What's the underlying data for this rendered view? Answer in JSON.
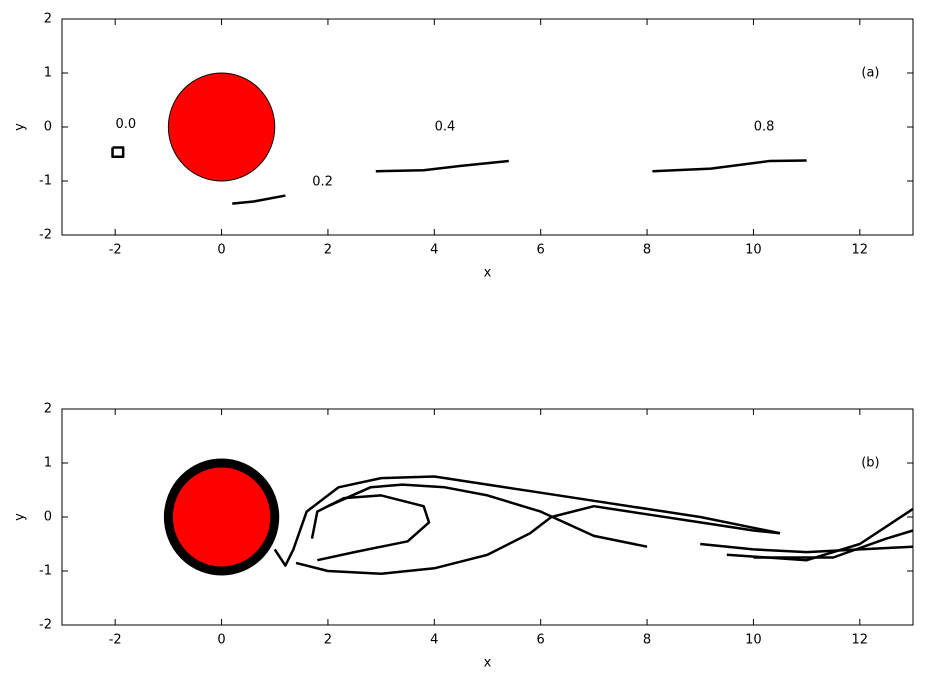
{
  "chart_data": [
    {
      "type": "line",
      "label": "(a)",
      "xlabel": "x",
      "ylabel": "y",
      "xlim": [
        -3,
        13
      ],
      "ylim": [
        -2,
        2
      ],
      "xticks": [
        -2,
        0,
        2,
        4,
        6,
        8,
        10,
        12
      ],
      "yticks": [
        -2,
        -1,
        0,
        1,
        2
      ],
      "label_x": 12.2,
      "label_y": 1,
      "cylinder": {
        "x": 0,
        "y": 0,
        "r": 1,
        "color": "#ff0000",
        "outline": false
      },
      "curve_color": "#000000",
      "curves": [
        {
          "x": [
            -2.05,
            -1.85,
            -1.85,
            -2.05,
            -2.05
          ],
          "y": [
            -0.38,
            -0.38,
            -0.55,
            -0.55,
            -0.38
          ]
        },
        {
          "x": [
            0.2,
            0.6,
            1.2
          ],
          "y": [
            -1.42,
            -1.38,
            -1.27
          ]
        },
        {
          "x": [
            2.9,
            3.8,
            4.5,
            5.4
          ],
          "y": [
            -0.82,
            -0.8,
            -0.72,
            -0.63
          ]
        },
        {
          "x": [
            8.1,
            9.2,
            10.3,
            11
          ],
          "y": [
            -0.82,
            -0.77,
            -0.63,
            -0.62
          ]
        }
      ],
      "annotations": [
        {
          "text": "0.0",
          "x": -1.8,
          "y": 0.05
        },
        {
          "text": "0.2",
          "x": 1.9,
          "y": -1.02
        },
        {
          "text": "0.4",
          "x": 4.2,
          "y": 0
        },
        {
          "text": "0.8",
          "x": 10.2,
          "y": 0
        }
      ]
    },
    {
      "type": "line",
      "label": "(b)",
      "xlabel": "x",
      "ylabel": "y",
      "xlim": [
        -3,
        13
      ],
      "ylim": [
        -2,
        2
      ],
      "xticks": [
        -2,
        0,
        2,
        4,
        6,
        8,
        10,
        12
      ],
      "yticks": [
        -2,
        -1,
        0,
        1,
        2
      ],
      "label_x": 12.2,
      "label_y": 1,
      "cylinder": {
        "x": 0,
        "y": 0,
        "r": 1,
        "color": "#ff0000",
        "outline": true
      },
      "curve_color": "#000000",
      "curves": [
        {
          "x": [
            1.0,
            1.2,
            1.35,
            1.6,
            2.2,
            3,
            4,
            5,
            6,
            7,
            8,
            9,
            10,
            10.5
          ],
          "y": [
            -0.6,
            -0.9,
            -0.6,
            0.1,
            0.55,
            0.72,
            0.75,
            0.6,
            0.45,
            0.3,
            0.15,
            0.0,
            -0.2,
            -0.3
          ]
        },
        {
          "x": [
            1.4,
            2,
            3,
            4,
            5,
            5.8,
            6.2,
            7,
            8,
            9,
            10,
            10.5
          ],
          "y": [
            -0.85,
            -1,
            -1.05,
            -0.95,
            -0.7,
            -0.3,
            0.0,
            0.2,
            0.05,
            -0.1,
            -0.25,
            -0.3
          ]
        },
        {
          "x": [
            1.7,
            1.8,
            2.3,
            3,
            3.8,
            3.9,
            3.5,
            2.5,
            1.8
          ],
          "y": [
            -0.4,
            0.1,
            0.35,
            0.4,
            0.2,
            -0.1,
            -0.45,
            -0.65,
            -0.8
          ]
        },
        {
          "x": [
            9.5,
            11,
            12,
            13
          ],
          "y": [
            -0.7,
            -0.8,
            -0.5,
            0.15
          ]
        },
        {
          "x": [
            10,
            11.5,
            12.5,
            13
          ],
          "y": [
            -0.75,
            -0.75,
            -0.4,
            -0.25
          ]
        },
        {
          "x": [
            9,
            10,
            11,
            12,
            13
          ],
          "y": [
            -0.5,
            -0.6,
            -0.65,
            -0.6,
            -0.55
          ]
        },
        {
          "x": [
            2.0,
            2.8,
            3.4,
            4.2,
            5,
            6,
            7,
            8
          ],
          "y": [
            0.2,
            0.55,
            0.6,
            0.55,
            0.4,
            0.1,
            -0.35,
            -0.55
          ]
        }
      ],
      "annotations": []
    }
  ]
}
